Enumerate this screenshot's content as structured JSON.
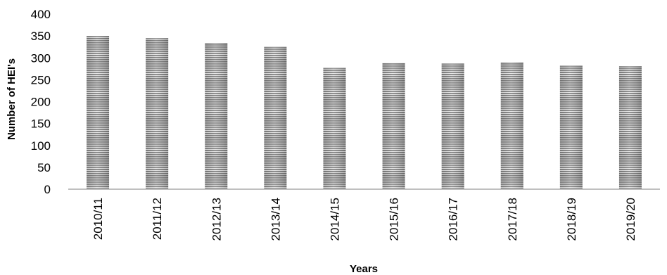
{
  "chart_data": {
    "type": "bar",
    "title": "",
    "xlabel": "Years",
    "ylabel": "Number of HEI's",
    "categories": [
      "2010/11",
      "2011/12",
      "2012/13",
      "2013/14",
      "2014/15",
      "2015/16",
      "2016/17",
      "2017/18",
      "2018/19",
      "2019/20"
    ],
    "values": [
      350,
      345,
      334,
      325,
      277,
      288,
      287,
      290,
      282,
      281
    ],
    "ylim": [
      0,
      400
    ],
    "yticks": [
      0,
      50,
      100,
      150,
      200,
      250,
      300,
      350,
      400
    ],
    "grid": false,
    "legend": "none",
    "bar_color": "#8c8c8c",
    "axis_color": "#bfbfbf"
  }
}
